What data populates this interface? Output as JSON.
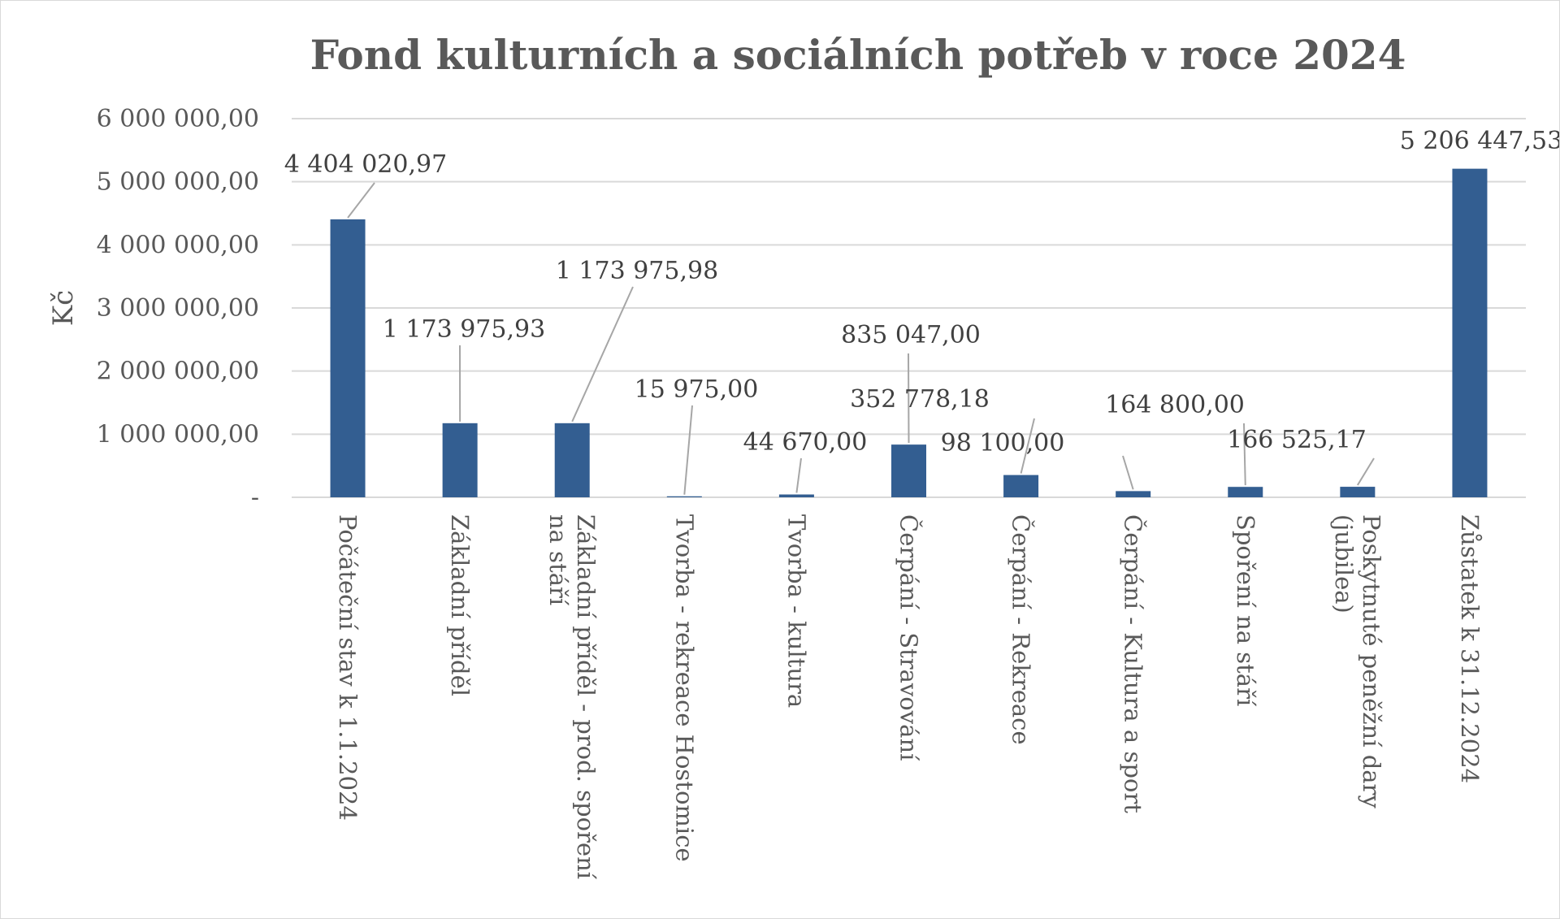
{
  "chart_data": {
    "type": "bar",
    "title": "Fond kulturních a sociálních potřeb v roce 2024",
    "ylabel": "Kč",
    "xlabel": "",
    "ylim": [
      0,
      6000000
    ],
    "yticks": [
      0,
      1000000,
      2000000,
      3000000,
      4000000,
      5000000,
      6000000
    ],
    "ytick_labels": [
      "-",
      "1 000 000,00",
      "2 000 000,00",
      "3 000 000,00",
      "4 000 000,00",
      "5 000 000,00",
      "6 000 000,00"
    ],
    "grid": true,
    "legend": "none",
    "bar_color": "#335E91",
    "categories": [
      "Počáteční stav k 1.1.2024",
      "Základní příděl",
      "Základní příděl - prod. spoření na stáří",
      "Tvorba - rekreace Hostomice",
      "Tvorba - kultura",
      "Čerpání - Stravování",
      "Čerpání - Rekreace",
      "Čerpání - Kultura a sport",
      "Spoření na stáří",
      "Poskytnuté peněžní dary (jubilea)",
      "Zůstatek k 31.12.2024"
    ],
    "values": [
      4404020.97,
      1173975.93,
      1173975.98,
      15975.0,
      44670.0,
      835047.0,
      352778.18,
      98100.0,
      164800.0,
      166525.17,
      5206447.53
    ],
    "data_labels": [
      "4 404 020,97",
      "1 173 975,93",
      "1 173 975,98",
      "15 975,00",
      "44 670,00",
      "835 047,00",
      "352 778,18",
      "98 100,00",
      "164 800,00",
      "166 525,17",
      "5 206 447,53"
    ]
  }
}
